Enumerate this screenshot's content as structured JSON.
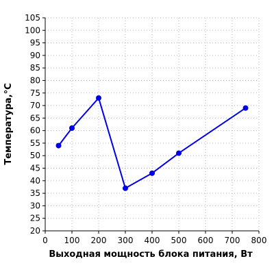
{
  "chart_data": {
    "type": "line",
    "title": "",
    "xlabel": "Выходная мощность блока питания, Вт",
    "ylabel": "Температура,°С",
    "xlim": [
      0,
      800
    ],
    "ylim": [
      20,
      105
    ],
    "x_ticks": [
      0,
      100,
      200,
      300,
      400,
      500,
      600,
      700,
      800
    ],
    "y_ticks": [
      20,
      25,
      30,
      35,
      40,
      45,
      50,
      55,
      60,
      65,
      70,
      75,
      80,
      85,
      90,
      95,
      100,
      105
    ],
    "x_tick_labels": [
      "0",
      "100",
      "200",
      "300",
      "400",
      "500",
      "600",
      "700",
      "800"
    ],
    "y_tick_labels": [
      "20",
      "25",
      "30",
      "35",
      "40",
      "45",
      "50",
      "55",
      "60",
      "65",
      "70",
      "75",
      "80",
      "85",
      "90",
      "95",
      "100",
      "105"
    ],
    "grid": true,
    "legend": "none",
    "series": [
      {
        "x": [
          50,
          100,
          200,
          300,
          400,
          500,
          750
        ],
        "y": [
          54,
          61,
          73,
          37,
          43,
          51,
          69
        ],
        "color": "#0000e6"
      }
    ]
  }
}
